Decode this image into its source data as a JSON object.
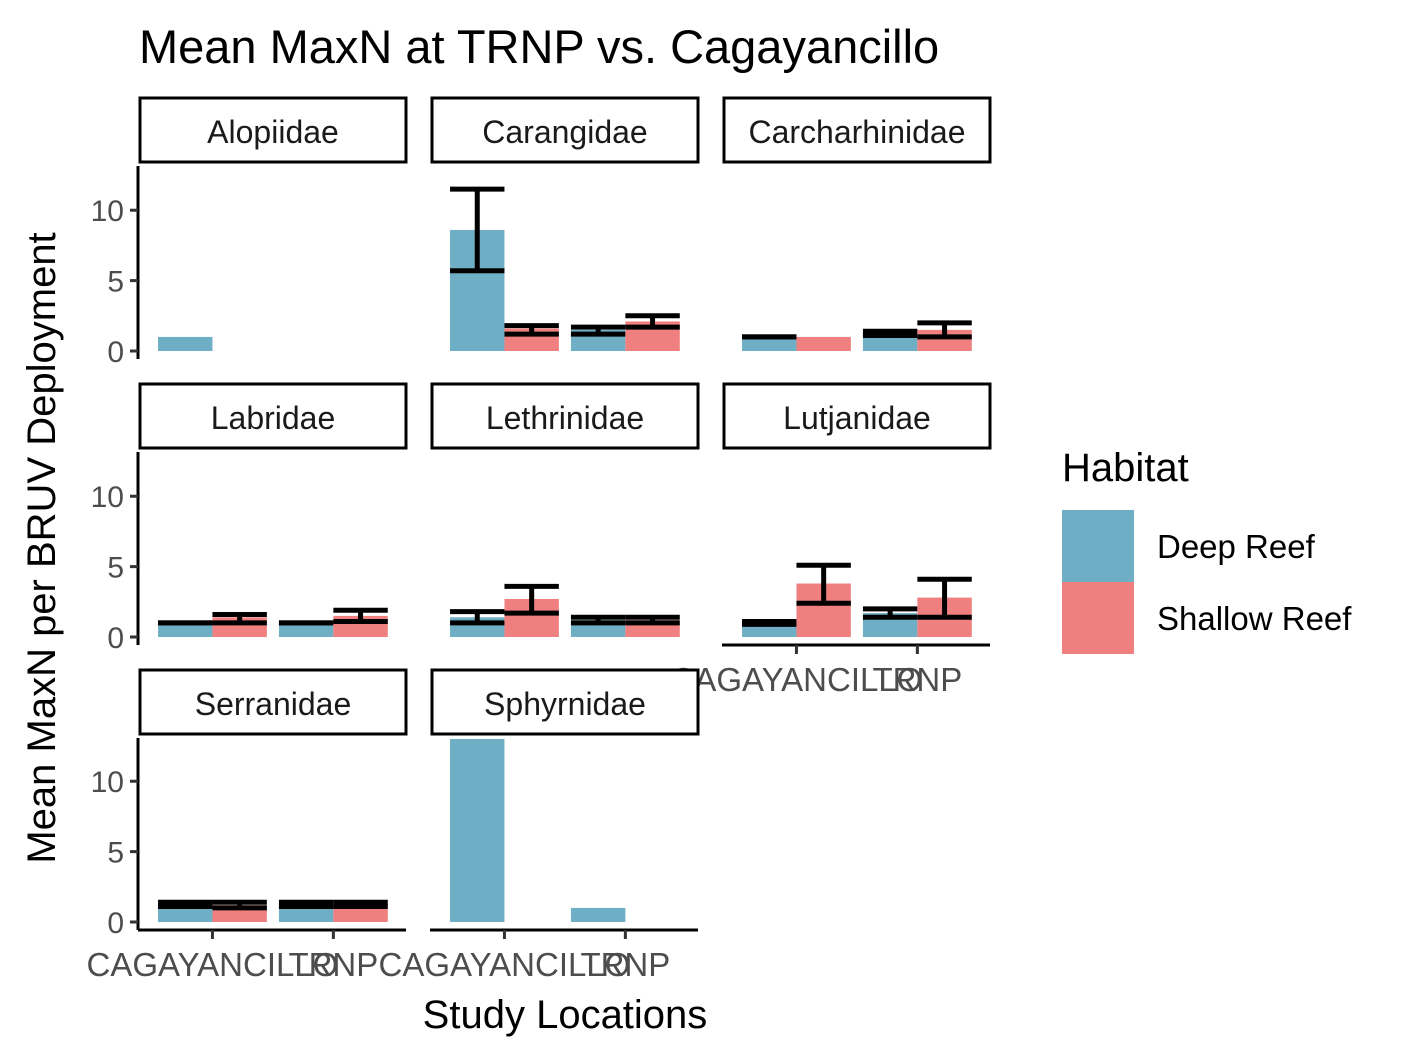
{
  "chart_data": {
    "type": "bar",
    "title": "Mean MaxN at TRNP vs. Cagayancillo",
    "xlabel": "Study Locations",
    "ylabel": "Mean MaxN per BRUV Deployment",
    "categories": [
      "CAGAYANCILLO",
      "TRNP"
    ],
    "ylim": [
      0,
      13
    ],
    "yticks": [
      0,
      5,
      10
    ],
    "grid": false,
    "legend": {
      "title": "Habitat",
      "position": "right",
      "entries": [
        {
          "name": "Deep Reef",
          "color": "#6EAFC6"
        },
        {
          "name": "Shallow Reef",
          "color": "#F08080"
        }
      ]
    },
    "panels": [
      {
        "name": "Alopiidae",
        "bars": [
          {
            "location": "CAGAYANCILLO",
            "habitat": "Deep Reef",
            "value": 1,
            "lo": null,
            "hi": null
          }
        ]
      },
      {
        "name": "Carangidae",
        "bars": [
          {
            "location": "CAGAYANCILLO",
            "habitat": "Deep Reef",
            "value": 8.6,
            "lo": 5.7,
            "hi": 11.5
          },
          {
            "location": "CAGAYANCILLO",
            "habitat": "Shallow Reef",
            "value": 1.6,
            "lo": 1.2,
            "hi": 1.8
          },
          {
            "location": "TRNP",
            "habitat": "Deep Reef",
            "value": 1.5,
            "lo": 1.2,
            "hi": 1.7
          },
          {
            "location": "TRNP",
            "habitat": "Shallow Reef",
            "value": 2.1,
            "lo": 1.7,
            "hi": 2.5
          }
        ]
      },
      {
        "name": "Carcharhinidae",
        "bars": [
          {
            "location": "CAGAYANCILLO",
            "habitat": "Deep Reef",
            "value": 1,
            "lo": 1,
            "hi": 1
          },
          {
            "location": "CAGAYANCILLO",
            "habitat": "Shallow Reef",
            "value": 1,
            "lo": null,
            "hi": null
          },
          {
            "location": "TRNP",
            "habitat": "Deep Reef",
            "value": 1.3,
            "lo": 1.1,
            "hi": 1.4
          },
          {
            "location": "TRNP",
            "habitat": "Shallow Reef",
            "value": 1.5,
            "lo": 1.0,
            "hi": 2.0
          }
        ]
      },
      {
        "name": "Labridae",
        "bars": [
          {
            "location": "CAGAYANCILLO",
            "habitat": "Deep Reef",
            "value": 1,
            "lo": 1,
            "hi": 1
          },
          {
            "location": "CAGAYANCILLO",
            "habitat": "Shallow Reef",
            "value": 1.4,
            "lo": 1.0,
            "hi": 1.6
          },
          {
            "location": "TRNP",
            "habitat": "Deep Reef",
            "value": 1,
            "lo": 1,
            "hi": 1
          },
          {
            "location": "TRNP",
            "habitat": "Shallow Reef",
            "value": 1.5,
            "lo": 1.1,
            "hi": 1.9
          }
        ]
      },
      {
        "name": "Lethrinidae",
        "bars": [
          {
            "location": "CAGAYANCILLO",
            "habitat": "Deep Reef",
            "value": 1.4,
            "lo": 1.0,
            "hi": 1.8
          },
          {
            "location": "CAGAYANCILLO",
            "habitat": "Shallow Reef",
            "value": 2.7,
            "lo": 1.7,
            "hi": 3.6
          },
          {
            "location": "TRNP",
            "habitat": "Deep Reef",
            "value": 1.2,
            "lo": 1.0,
            "hi": 1.4
          },
          {
            "location": "TRNP",
            "habitat": "Shallow Reef",
            "value": 1.2,
            "lo": 1.0,
            "hi": 1.4
          }
        ]
      },
      {
        "name": "Lutjanidae",
        "bars": [
          {
            "location": "CAGAYANCILLO",
            "habitat": "Deep Reef",
            "value": 1,
            "lo": 0.9,
            "hi": 1.1
          },
          {
            "location": "CAGAYANCILLO",
            "habitat": "Shallow Reef",
            "value": 3.8,
            "lo": 2.4,
            "hi": 5.1
          },
          {
            "location": "TRNP",
            "habitat": "Deep Reef",
            "value": 1.7,
            "lo": 1.4,
            "hi": 2.0
          },
          {
            "location": "TRNP",
            "habitat": "Shallow Reef",
            "value": 2.8,
            "lo": 1.4,
            "hi": 4.1
          }
        ]
      },
      {
        "name": "Serranidae",
        "bars": [
          {
            "location": "CAGAYANCILLO",
            "habitat": "Deep Reef",
            "value": 1.3,
            "lo": 1.1,
            "hi": 1.4
          },
          {
            "location": "CAGAYANCILLO",
            "habitat": "Shallow Reef",
            "value": 1.2,
            "lo": 1.0,
            "hi": 1.4
          },
          {
            "location": "TRNP",
            "habitat": "Deep Reef",
            "value": 1.3,
            "lo": 1.1,
            "hi": 1.4
          },
          {
            "location": "TRNP",
            "habitat": "Shallow Reef",
            "value": 1.3,
            "lo": 1.1,
            "hi": 1.4
          }
        ]
      },
      {
        "name": "Sphyrnidae",
        "bars": [
          {
            "location": "CAGAYANCILLO",
            "habitat": "Deep Reef",
            "value": 13,
            "lo": null,
            "hi": null
          },
          {
            "location": "TRNP",
            "habitat": "Deep Reef",
            "value": 1,
            "lo": null,
            "hi": null
          }
        ]
      }
    ]
  }
}
